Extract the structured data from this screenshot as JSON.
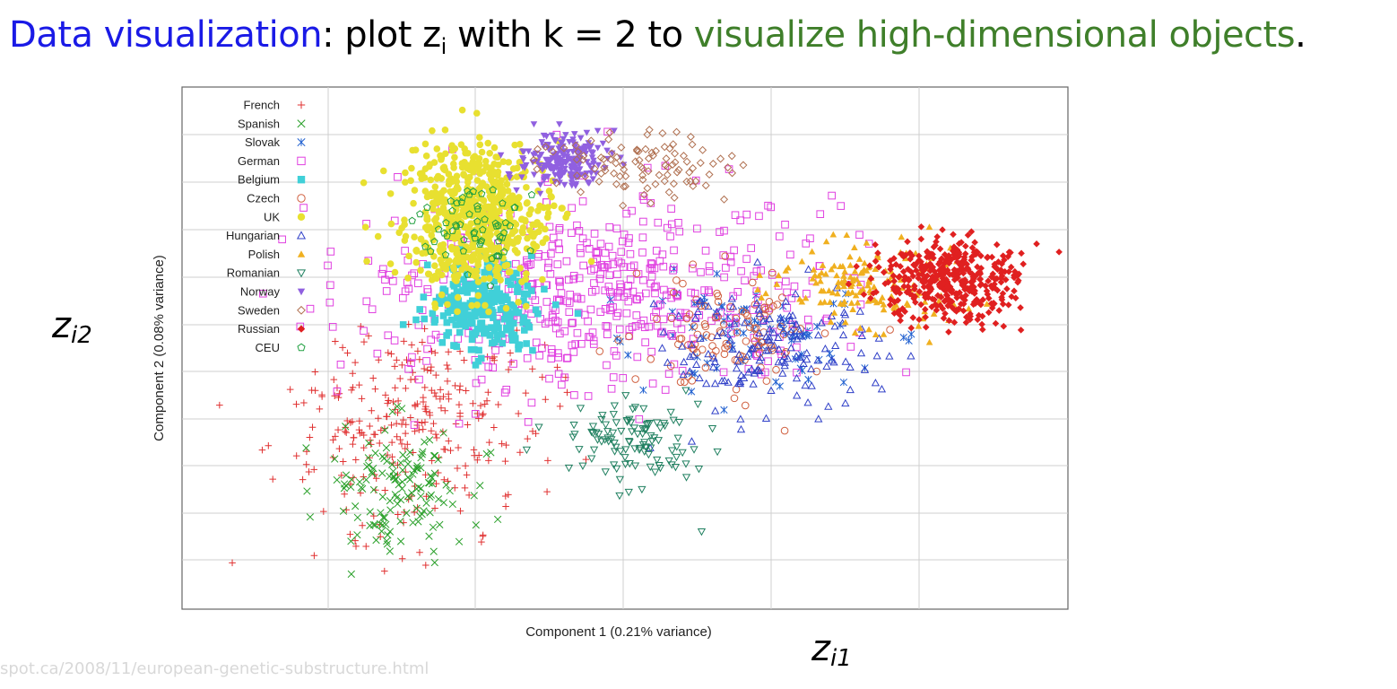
{
  "headline": {
    "part1": "Data visualization",
    "part2": ": plot z",
    "sub": "i",
    "part3": " with k = 2 to ",
    "part4": "visualize high-dimensional objects",
    "part5": "."
  },
  "annotations": {
    "y_handwritten": "z",
    "y_sub": "i2",
    "x_handwritten": "z",
    "x_sub": "i1"
  },
  "source_text": "spot.ca/2008/11/european-genetic-substructure.html",
  "colors": {
    "blue": "#1a1ae6",
    "green": "#3f7f2a"
  },
  "chart_data": {
    "type": "scatter",
    "xlabel": "Component 1 (0.21% variance)",
    "ylabel": "Component 2 (0.08% variance)",
    "grid": true,
    "legend_position": "top-left",
    "series": [
      {
        "name": "French",
        "marker": "plus",
        "color": "#e03030",
        "clusters": [
          {
            "cx": 0.27,
            "cy": 0.62,
            "sx": 0.07,
            "sy": 0.08,
            "n": 240
          },
          {
            "cx": 0.22,
            "cy": 0.78,
            "sx": 0.06,
            "sy": 0.08,
            "n": 50
          }
        ]
      },
      {
        "name": "Spanish",
        "marker": "x",
        "color": "#2aa02a",
        "clusters": [
          {
            "cx": 0.24,
            "cy": 0.77,
            "sx": 0.04,
            "sy": 0.06,
            "n": 140
          }
        ]
      },
      {
        "name": "Slovak",
        "marker": "star",
        "color": "#2060d0",
        "clusters": [
          {
            "cx": 0.64,
            "cy": 0.47,
            "sx": 0.07,
            "sy": 0.05,
            "n": 90
          }
        ]
      },
      {
        "name": "German",
        "marker": "square-open",
        "color": "#e040e0",
        "clusters": [
          {
            "cx": 0.47,
            "cy": 0.39,
            "sx": 0.14,
            "sy": 0.09,
            "n": 520
          }
        ]
      },
      {
        "name": "Belgium",
        "marker": "square-filled",
        "color": "#40d0d8",
        "clusters": [
          {
            "cx": 0.34,
            "cy": 0.42,
            "sx": 0.03,
            "sy": 0.04,
            "n": 260
          }
        ]
      },
      {
        "name": "Czech",
        "marker": "circle-open",
        "color": "#d06040",
        "clusters": [
          {
            "cx": 0.62,
            "cy": 0.46,
            "sx": 0.05,
            "sy": 0.06,
            "n": 110
          }
        ]
      },
      {
        "name": "UK",
        "marker": "circle-filled",
        "color": "#e8e030",
        "clusters": [
          {
            "cx": 0.33,
            "cy": 0.25,
            "sx": 0.04,
            "sy": 0.07,
            "n": 620
          }
        ]
      },
      {
        "name": "Hungarian",
        "marker": "triangle-open",
        "color": "#3040c8",
        "clusters": [
          {
            "cx": 0.67,
            "cy": 0.5,
            "sx": 0.06,
            "sy": 0.06,
            "n": 150
          }
        ]
      },
      {
        "name": "Polish",
        "marker": "triangle-filled",
        "color": "#f0b020",
        "clusters": [
          {
            "cx": 0.77,
            "cy": 0.38,
            "sx": 0.05,
            "sy": 0.04,
            "n": 160
          }
        ]
      },
      {
        "name": "Romanian",
        "marker": "triangle-down-open",
        "color": "#208060",
        "clusters": [
          {
            "cx": 0.51,
            "cy": 0.68,
            "sx": 0.04,
            "sy": 0.04,
            "n": 110
          }
        ]
      },
      {
        "name": "Norway",
        "marker": "triangle-down-filled",
        "color": "#9060e0",
        "clusters": [
          {
            "cx": 0.43,
            "cy": 0.14,
            "sx": 0.025,
            "sy": 0.025,
            "n": 200
          }
        ]
      },
      {
        "name": "Sweden",
        "marker": "diamond-open",
        "color": "#b07050",
        "clusters": [
          {
            "cx": 0.51,
            "cy": 0.15,
            "sx": 0.05,
            "sy": 0.03,
            "n": 100
          }
        ]
      },
      {
        "name": "Russian",
        "marker": "diamond-filled",
        "color": "#e02020",
        "clusters": [
          {
            "cx": 0.87,
            "cy": 0.37,
            "sx": 0.04,
            "sy": 0.04,
            "n": 420
          }
        ]
      },
      {
        "name": "CEU",
        "marker": "pentagon-open",
        "color": "#20a040",
        "clusters": [
          {
            "cx": 0.33,
            "cy": 0.26,
            "sx": 0.03,
            "sy": 0.05,
            "n": 60
          }
        ]
      }
    ]
  }
}
